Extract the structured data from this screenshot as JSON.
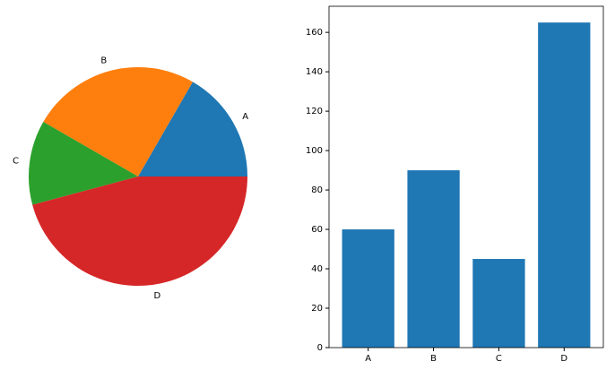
{
  "chart_data": [
    {
      "type": "pie",
      "categories": [
        "A",
        "B",
        "C",
        "D"
      ],
      "values": [
        60,
        90,
        45,
        165
      ],
      "colors": [
        "#1f77b4",
        "#ff7f0e",
        "#2ca02c",
        "#d62728"
      ]
    },
    {
      "type": "bar",
      "categories": [
        "A",
        "B",
        "C",
        "D"
      ],
      "values": [
        60,
        90,
        45,
        165
      ],
      "color": "#1f77b4",
      "ylim": [
        0,
        173.25
      ],
      "yticks": [
        0,
        20,
        40,
        60,
        80,
        100,
        120,
        140,
        160
      ]
    }
  ]
}
